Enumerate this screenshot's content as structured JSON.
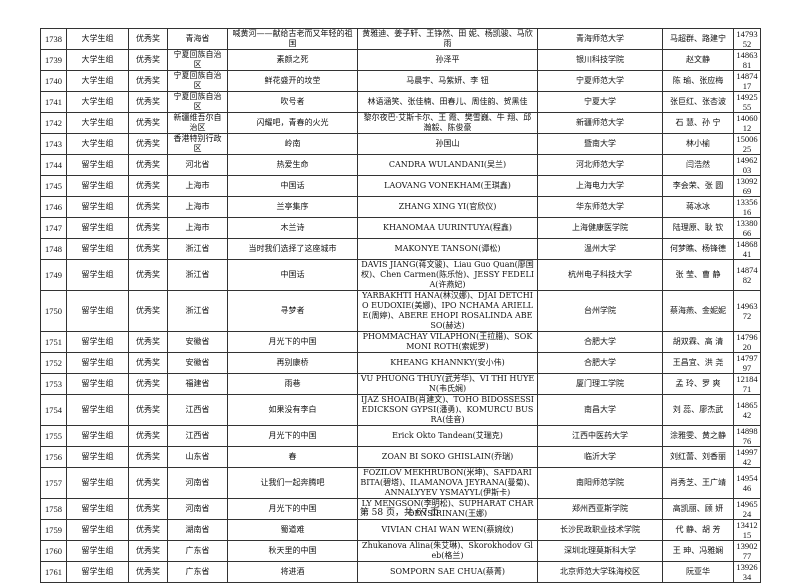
{
  "table": {
    "rows": [
      [
        "1738",
        "大学生组",
        "优秀奖",
        "青海省",
        "喊黄河——献给古老而又年轻的祖国",
        "黄雅迪、姜子轩、王铮然、田 妮、杨凯骏、马欣雨",
        "青海师范大学",
        "马超群、路建宁",
        "1479352"
      ],
      [
        "1739",
        "大学生组",
        "优秀奖",
        "宁夏回族自治区",
        "素颜之死",
        "孙泽平",
        "银川科技学院",
        "赵文静",
        "1486381"
      ],
      [
        "1740",
        "大学生组",
        "优秀奖",
        "宁夏回族自治区",
        "鲜花盛开的坟茔",
        "马晨宇、马紫妍、李 钮",
        "宁夏师范大学",
        "陈 瑜、张应梅",
        "1487417"
      ],
      [
        "1741",
        "大学生组",
        "优秀奖",
        "宁夏回族自治区",
        "吹号者",
        "林语涵笑、张佳楠、田春儿、周佳韵、贺黑佳",
        "宁夏大学",
        "张巨红、张杏波",
        "1492555"
      ],
      [
        "1742",
        "大学生组",
        "优秀奖",
        "新疆维吾尔自治区",
        "闪耀吧，青春的火光",
        "黎尔夜巴·艾斯卡尔、王 霞、樊雪巍、牛 翔、邱瀚毅、陈俊豪",
        "新疆师范大学",
        "石 慧、孙 宁",
        "1406012"
      ],
      [
        "1743",
        "大学生组",
        "优秀奖",
        "香港特别行政区",
        "岭南",
        "孙国山",
        "暨南大学",
        "林小榆",
        "1500625"
      ],
      [
        "1744",
        "留学生组",
        "优秀奖",
        "河北省",
        "热爱生命",
        "CANDRA WULANDANI(吴兰)",
        "河北师范大学",
        "闫浩然",
        "1496203"
      ],
      [
        "1745",
        "留学生组",
        "优秀奖",
        "上海市",
        "中国话",
        "LAOVANG VONEKHAM(王琪鑫)",
        "上海电力大学",
        "李会荣、张 圆",
        "1309269"
      ],
      [
        "1746",
        "留学生组",
        "优秀奖",
        "上海市",
        "兰亭集序",
        "ZHANG XING YI(官欣仪)",
        "华东师范大学",
        "蒋冰冰",
        "1335616"
      ],
      [
        "1747",
        "留学生组",
        "优秀奖",
        "上海市",
        "木兰诗",
        "KHANOMAA UURINTUYA(程鑫)",
        "上海健康医学院",
        "陆理原、耿 钦",
        "1338066"
      ],
      [
        "1748",
        "留学生组",
        "优秀奖",
        "浙江省",
        "当时我们选择了这座城市",
        "MAKONYE TANSON(谭松)",
        "温州大学",
        "何梦瞧、杨锋德",
        "1486841"
      ],
      [
        "1749",
        "留学生组",
        "优秀奖",
        "浙江省",
        "中国话",
        "DAVIS JIANG(蒋文骏)、Liau Guo Quan(廖国权)、Chen Carmen(陈乐怡)、JESSY FEDELIA(许燕妃)",
        "杭州电子科技大学",
        "张 莹、曹 静",
        "1487482"
      ],
      [
        "1750",
        "留学生组",
        "优秀奖",
        "浙江省",
        "寻梦者",
        "YARBAKHTI HANA(林汉娜)、DJAI DETCHIO EUDOXIE(美娜)、IPO NCHAMA ARIELLE(周婷)、ABERE EHOPI ROSALINDA ABESO(赫达)",
        "台州学院",
        "蔡海燕、金妮妮",
        "1496372"
      ],
      [
        "1751",
        "留学生组",
        "优秀奖",
        "安徽省",
        "月光下的中国",
        "PHOMMACHAY VILAPHON(王拉腊)、SOK MONI ROTH(索妮罗)",
        "合肥大学",
        "胡双霖、高 清",
        "1479620"
      ],
      [
        "1752",
        "留学生组",
        "优秀奖",
        "安徽省",
        "再别康桥",
        "KHEANG KHANNKY(安小伟)",
        "合肥大学",
        "王昌宜、洪 尧",
        "1479797"
      ],
      [
        "1753",
        "留学生组",
        "优秀奖",
        "福建省",
        "雨巷",
        "VU PHUONG THUY(武芳华)、VI THI HUYEN(韦氏娴)",
        "厦门理工学院",
        "孟 玲、罗 爽",
        "1218471"
      ],
      [
        "1754",
        "留学生组",
        "优秀奖",
        "江西省",
        "如果没有李白",
        "IJAZ SHOAIB(肖建文)、TOHO BIDOSSESSI EDICKSON GYPSI(潘勇)、KOMURCU BUSRA(佳音)",
        "南昌大学",
        "刘 蕊、廖杰武",
        "1486542"
      ],
      [
        "1755",
        "留学生组",
        "优秀奖",
        "江西省",
        "月光下的中国",
        "Erick Okto Tandean(艾瑞克)",
        "江西中医药大学",
        "涂雅雯、黄之静",
        "1489876"
      ],
      [
        "1756",
        "留学生组",
        "优秀奖",
        "山东省",
        "春",
        "ZOAN BI SOKO GHISLAIN(乔瑞)",
        "临沂大学",
        "刘红蕾、刘香丽",
        "1499742"
      ],
      [
        "1757",
        "留学生组",
        "优秀奖",
        "河南省",
        "让我们一起奔腾吧",
        "FOZILOV MEKHRUBON(米坤)、SAFDARI BITA(碧塔)、ILAMANOVA JEYRANA(曼菊)、ANNALYYEV YSMAYYL(伊斯卡)",
        "南阳师范学院",
        "肖秀芝、王广靖",
        "1495446"
      ],
      [
        "1758",
        "留学生组",
        "优秀奖",
        "河南省",
        "月光下的中国",
        "LY MENGSON(李明松)、SUPHARAT CHAROENSIRINAN(王娜)",
        "郑州西亚斯学院",
        "高凯丽、顾 妍",
        "1496524"
      ],
      [
        "1759",
        "留学生组",
        "优秀奖",
        "湖南省",
        "蜀道难",
        "VIVIAN CHAI WAN WEN(蔡婉纹)",
        "长沙民政职业技术学院",
        "代 静、胡 芳",
        "1341215"
      ],
      [
        "1760",
        "留学生组",
        "优秀奖",
        "广东省",
        "秋天里的中国",
        "Zhukanova Alina(朱艾琳)、Skorokhodov Gleb(格兰)",
        "深圳北理莫斯科大学",
        "王 珅、冯雅娴",
        "1390277"
      ],
      [
        "1761",
        "留学生组",
        "优秀奖",
        "广东省",
        "将进酒",
        "SOMPORN SAE CHUA(蔡菁)",
        "北京师范大学珠海校区",
        "阮亚华",
        "1392634"
      ]
    ]
  },
  "footer": "第 58 页，共 67 页"
}
